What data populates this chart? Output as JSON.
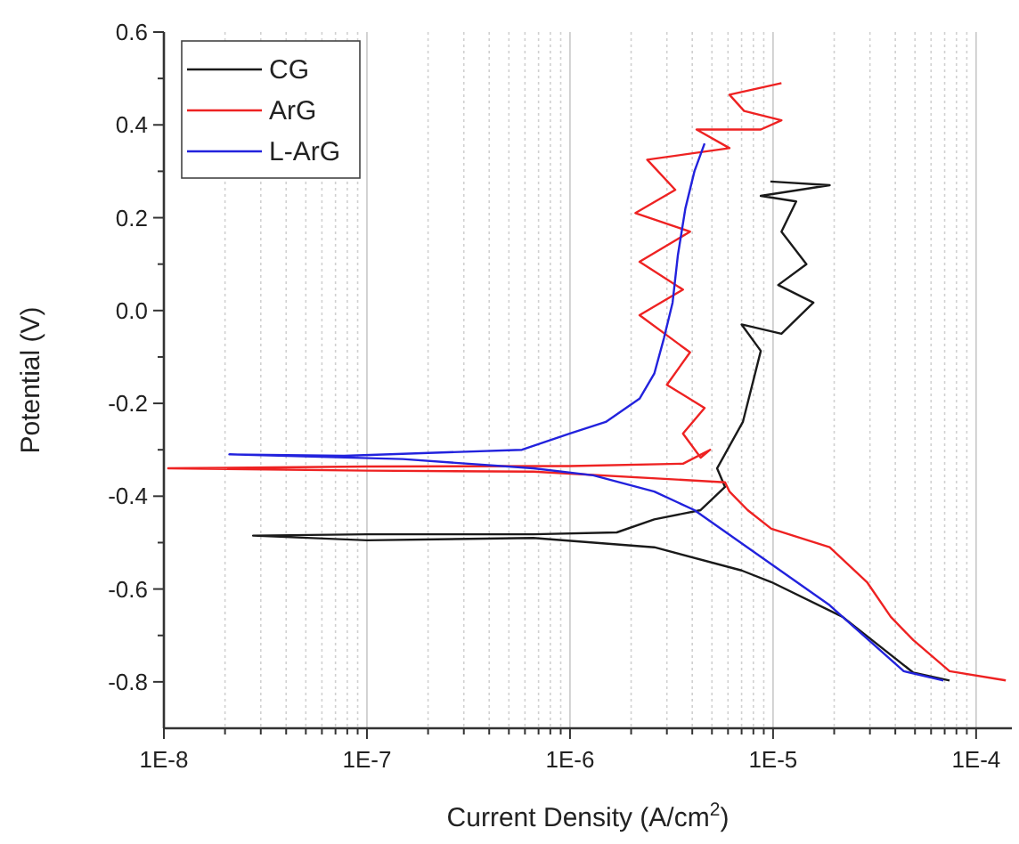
{
  "chart_data": {
    "type": "line",
    "xlabel": "Current Density (A/cm$^{2}$)",
    "ylabel": "Potential (V)",
    "log": "x",
    "xlim": [
      1e-08,
      0.00015
    ],
    "ylim": [
      -0.9,
      0.6
    ],
    "xticks": [
      {
        "value": 1e-08,
        "label": "1E-8"
      },
      {
        "value": 2e-08,
        "label": null
      },
      {
        "value": 3e-08,
        "label": null
      },
      {
        "value": 4e-08,
        "label": null
      },
      {
        "value": 5e-08,
        "label": null
      },
      {
        "value": 6e-08,
        "label": null
      },
      {
        "value": 7e-08,
        "label": null
      },
      {
        "value": 8e-08,
        "label": null
      },
      {
        "value": 9e-08,
        "label": null
      },
      {
        "value": 1e-07,
        "label": "1E-7"
      },
      {
        "value": 2e-07,
        "label": null
      },
      {
        "value": 3e-07,
        "label": null
      },
      {
        "value": 4e-07,
        "label": null
      },
      {
        "value": 5e-07,
        "label": null
      },
      {
        "value": 6e-07,
        "label": null
      },
      {
        "value": 7e-07,
        "label": null
      },
      {
        "value": 8e-07,
        "label": null
      },
      {
        "value": 9e-07,
        "label": null
      },
      {
        "value": 1e-06,
        "label": "1E-6"
      },
      {
        "value": 2e-06,
        "label": null
      },
      {
        "value": 3e-06,
        "label": null
      },
      {
        "value": 4e-06,
        "label": null
      },
      {
        "value": 5e-06,
        "label": null
      },
      {
        "value": 6e-06,
        "label": null
      },
      {
        "value": 7e-06,
        "label": null
      },
      {
        "value": 8e-06,
        "label": null
      },
      {
        "value": 9e-06,
        "label": null
      },
      {
        "value": 1e-05,
        "label": "1E-5"
      },
      {
        "value": 2e-05,
        "label": null
      },
      {
        "value": 3e-05,
        "label": null
      },
      {
        "value": 4e-05,
        "label": null
      },
      {
        "value": 5e-05,
        "label": null
      },
      {
        "value": 6e-05,
        "label": null
      },
      {
        "value": 7e-05,
        "label": null
      },
      {
        "value": 8e-05,
        "label": null
      },
      {
        "value": 9e-05,
        "label": null
      },
      {
        "value": 0.0001,
        "label": "1E-4"
      }
    ],
    "yticks": [
      -0.8,
      {
        "value": -0.7,
        "label": null
      },
      -0.6,
      {
        "value": -0.5,
        "label": null
      },
      -0.4,
      {
        "value": -0.3,
        "label": null
      },
      -0.2,
      {
        "value": -0.1,
        "label": null
      },
      {
        "value": 0,
        "label": "0.0"
      },
      {
        "value": 0.1,
        "label": null
      },
      0.2,
      {
        "value": 0.3,
        "label": null
      },
      0.4,
      {
        "value": 0.5,
        "label": null
      },
      0.6
    ],
    "grid": "x",
    "legend": "top left",
    "marker": "none",
    "line_style": "solid",
    "series": [
      {
        "name": "CG",
        "color": "#1a1a1a",
        "x": [
          7.4e-05,
          4.9e-05,
          2.2e-05,
          9.8e-06,
          7e-06,
          2.6e-06,
          6.6e-07,
          1e-07,
          2.75e-08,
          1e-07,
          6.6e-07,
          1.7e-06,
          2.6e-06,
          4.4e-06,
          5.8e-06,
          5.3e-06,
          7.1e-06,
          8.7e-06,
          7e-06,
          1.1e-05,
          1.58e-05,
          1.06e-05,
          1.46e-05,
          1.1e-05,
          1.3e-05,
          8.7e-06,
          1.9e-05,
          9.7e-06
        ],
        "values": [
          -0.797,
          -0.78,
          -0.66,
          -0.585,
          -0.56,
          -0.51,
          -0.49,
          -0.495,
          -0.485,
          -0.482,
          -0.482,
          -0.478,
          -0.45,
          -0.43,
          -0.38,
          -0.34,
          -0.24,
          -0.087,
          -0.03,
          -0.05,
          0.017,
          0.055,
          0.1,
          0.17,
          0.235,
          0.247,
          0.27,
          0.278
        ]
      },
      {
        "name": "ArG",
        "color": "#ee2222",
        "x": [
          0.00014,
          7.4e-05,
          4.9e-05,
          3.8e-05,
          2.9e-05,
          1.9e-05,
          9.8e-06,
          7.5e-06,
          6.1e-06,
          5.8e-06,
          6.6e-07,
          1e-07,
          1.05e-08,
          1e-07,
          1e-06,
          3.6e-06,
          4.9e-06,
          4.4e-06,
          3.6e-06,
          4.6e-06,
          3e-06,
          3.9e-06,
          2.2e-06,
          3.6e-06,
          2.2e-06,
          3.9e-06,
          2.1e-06,
          3.3e-06,
          2.4e-06,
          6.1e-06,
          4.2e-06,
          8.7e-06,
          1.1e-05,
          7.2e-06,
          6.1e-06,
          1.1e-05
        ],
        "values": [
          -0.797,
          -0.777,
          -0.71,
          -0.66,
          -0.585,
          -0.51,
          -0.47,
          -0.43,
          -0.39,
          -0.37,
          -0.347,
          -0.345,
          -0.34,
          -0.336,
          -0.335,
          -0.33,
          -0.3,
          -0.317,
          -0.265,
          -0.21,
          -0.16,
          -0.09,
          -0.01,
          0.045,
          0.105,
          0.17,
          0.21,
          0.26,
          0.325,
          0.35,
          0.39,
          0.39,
          0.41,
          0.43,
          0.465,
          0.49
        ]
      },
      {
        "name": "L-ArG",
        "color": "#2222dd",
        "x": [
          6.9e-05,
          4.4e-05,
          2.2e-05,
          1.9e-05,
          4.1e-06,
          2.6e-06,
          1.3e-06,
          6.6e-07,
          1.5e-07,
          2.1e-08,
          7.7e-08,
          5.8e-07,
          1e-06,
          1.5e-06,
          2.2e-06,
          2.6e-06,
          2.9e-06,
          3.2e-06,
          3.4e-06,
          3.7e-06,
          4.1e-06,
          4.6e-06
        ],
        "values": [
          -0.797,
          -0.777,
          -0.66,
          -0.635,
          -0.43,
          -0.39,
          -0.355,
          -0.34,
          -0.32,
          -0.31,
          -0.313,
          -0.3,
          -0.265,
          -0.24,
          -0.19,
          -0.136,
          -0.06,
          0.017,
          0.12,
          0.22,
          0.3,
          0.36
        ]
      }
    ]
  }
}
